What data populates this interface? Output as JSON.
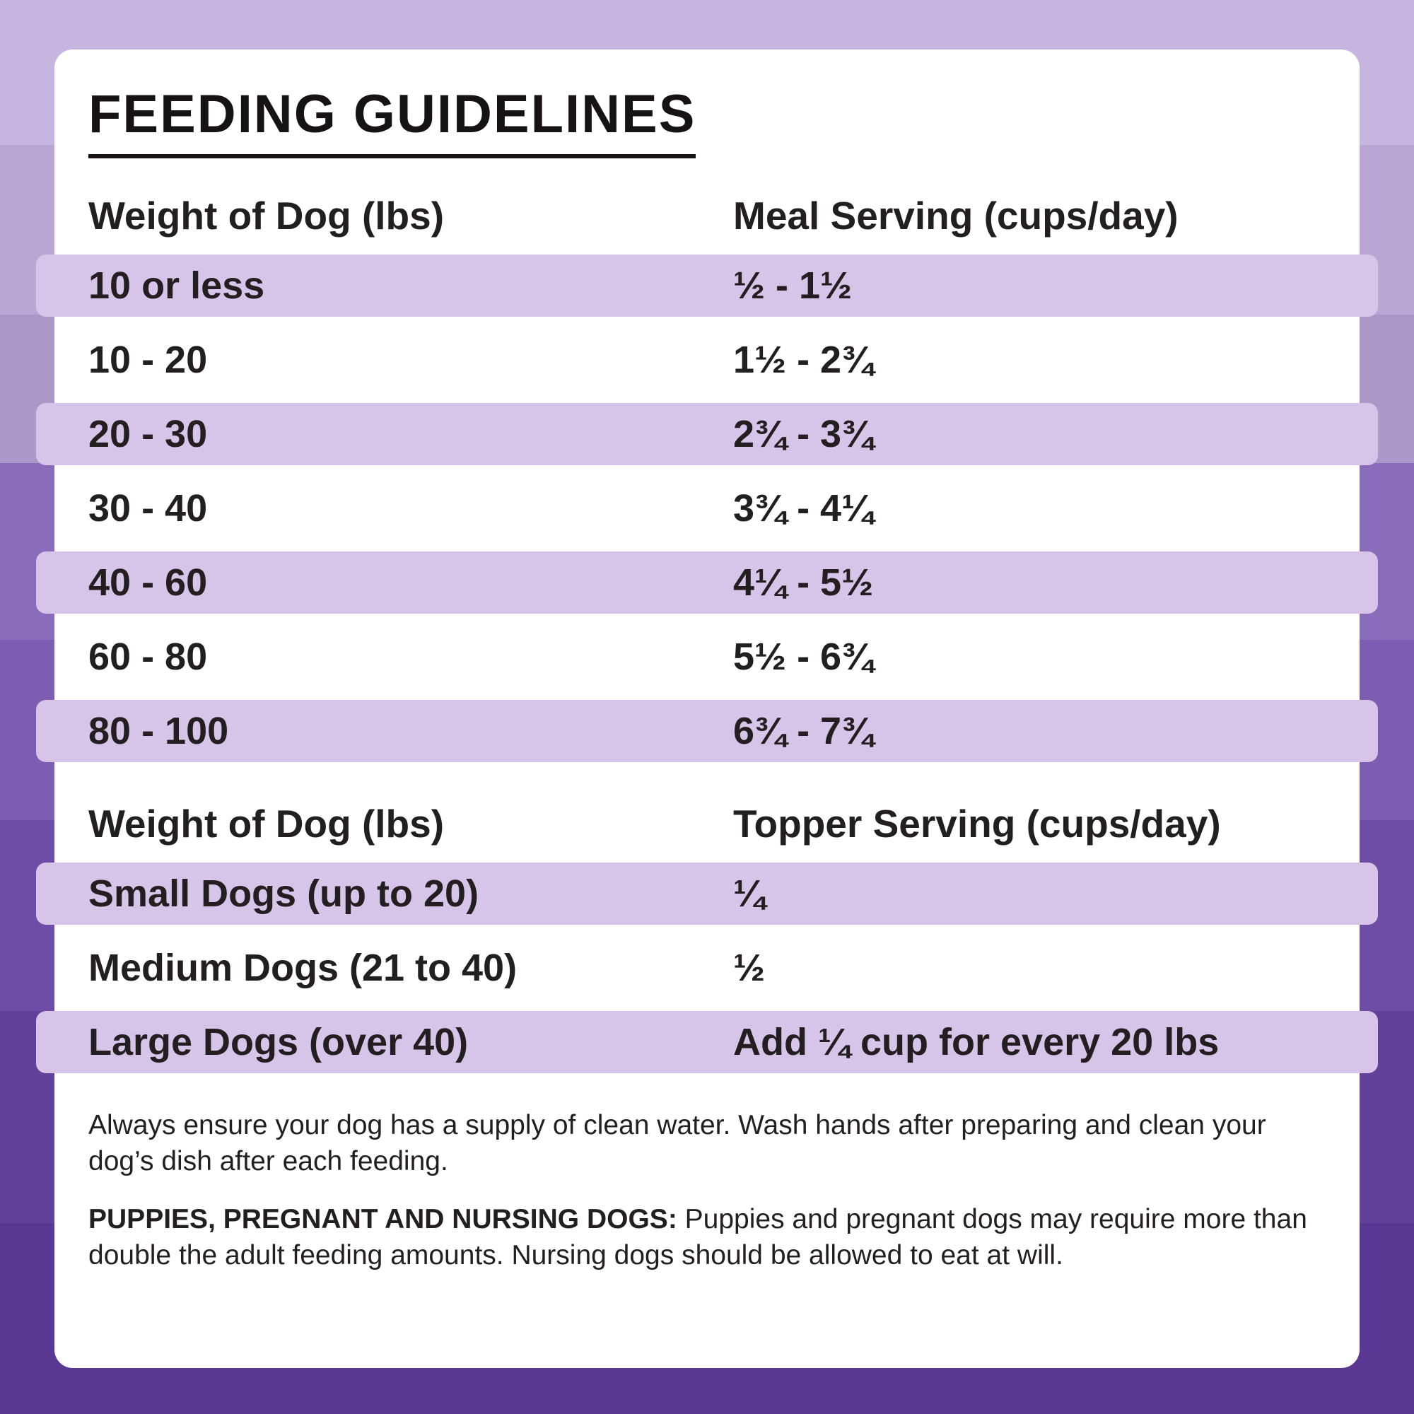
{
  "title": "FEEDING GUIDELINES",
  "meal_table": {
    "weight_header": "Weight of Dog (lbs)",
    "serving_header": "Meal Serving (cups/day)",
    "rows": [
      {
        "weight": "10 or less",
        "serving": "½ - 1½"
      },
      {
        "weight": "10 - 20",
        "serving": "1½ - 2¾"
      },
      {
        "weight": "20 - 30",
        "serving": "2¾ - 3¾"
      },
      {
        "weight": "30 - 40",
        "serving": "3¾ - 4¼"
      },
      {
        "weight": "40 - 60",
        "serving": "4¼ - 5½"
      },
      {
        "weight": "60 - 80",
        "serving": "5½ - 6¾"
      },
      {
        "weight": "80 - 100",
        "serving": "6¾ - 7¾"
      }
    ]
  },
  "topper_table": {
    "weight_header": "Weight of Dog (lbs)",
    "serving_header": "Topper Serving (cups/day)",
    "rows": [
      {
        "weight": "Small Dogs (up to 20)",
        "serving": "¼"
      },
      {
        "weight": "Medium Dogs (21 to 40)",
        "serving": "½"
      },
      {
        "weight": "Large Dogs (over 40)",
        "serving": "Add ¼ cup for every 20 lbs"
      }
    ]
  },
  "notes": {
    "water_note": "Always ensure your dog has a supply of clean water. Wash hands after preparing and clean your dog’s dish after each feeding.",
    "special_label": "PUPPIES, PREGNANT AND NURSING DOGS:",
    "special_text": "Puppies and pregnant dogs may require more than double the adult feeding amounts. Nursing dogs should be allowed to eat at will."
  },
  "colors": {
    "row_highlight": "#d6c5e8",
    "card_background": "#ffffff",
    "text": "#231f20",
    "background_stripes": [
      "#c6b5de",
      "#b9a6d2",
      "#ac97c9",
      "#8a6cba",
      "#7d5cb1",
      "#6f4da6",
      "#63419b",
      "#593792"
    ]
  }
}
